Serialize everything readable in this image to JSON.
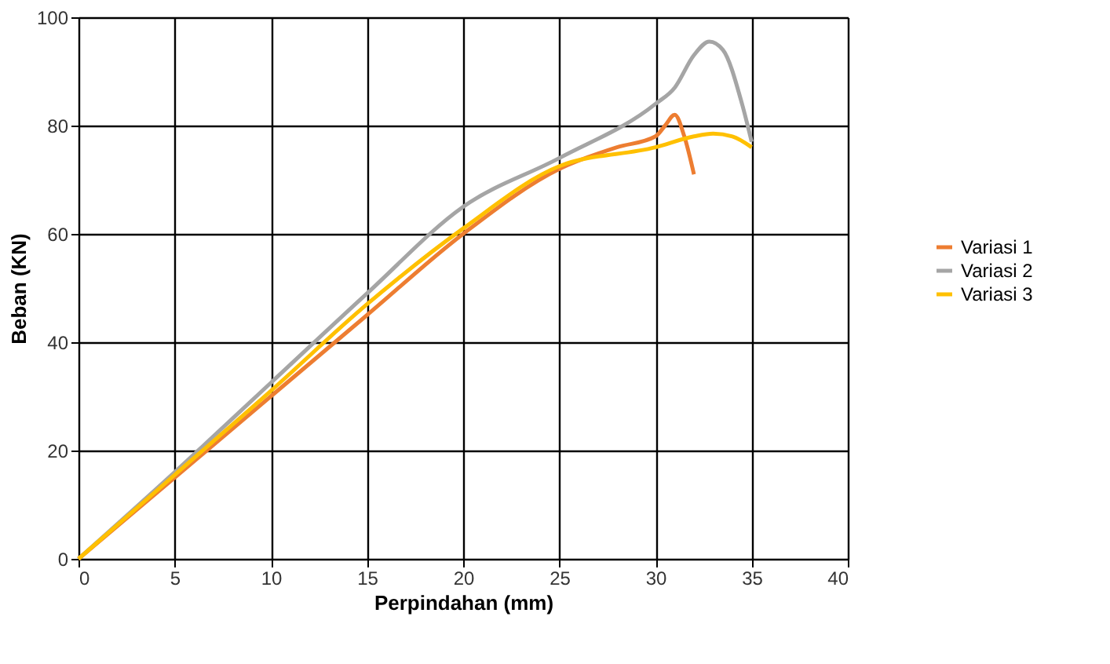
{
  "chart_data": {
    "type": "line",
    "xlabel": "Perpindahan (mm)",
    "ylabel": "Beban (KN)",
    "xlim": [
      0,
      40
    ],
    "xticks": [
      0,
      5,
      10,
      15,
      20,
      25,
      30,
      35,
      40
    ],
    "ylim": [
      0,
      100
    ],
    "yticks": [
      0,
      20,
      40,
      60,
      80,
      100
    ],
    "grid": true,
    "legend": "right",
    "marker": "none",
    "line_style": "solid",
    "series": [
      {
        "name": "Variasi 1",
        "color": "#ed7d31",
        "x": [
          0,
          5,
          10,
          15,
          20,
          25,
          28,
          30,
          30.5,
          31,
          31.5,
          32
        ],
        "values": [
          0,
          15,
          30,
          45,
          60,
          72,
          76,
          78,
          80,
          82,
          78,
          71
        ]
      },
      {
        "name": "Variasi 2",
        "color": "#a5a5a5",
        "x": [
          0,
          5,
          10,
          15,
          20,
          25,
          30,
          31,
          32,
          32.8,
          33.5,
          34.5,
          35
        ],
        "values": [
          0,
          16,
          32.5,
          49,
          65,
          74,
          84,
          87,
          93,
          95.5,
          94,
          84,
          77
        ]
      },
      {
        "name": "Variasi 3",
        "color": "#ffc000",
        "x": [
          0,
          5,
          10,
          15,
          20,
          25,
          30,
          32,
          33,
          34,
          35
        ],
        "values": [
          0,
          15.5,
          31,
          47,
          61,
          72.5,
          76,
          78,
          78.5,
          78,
          76
        ]
      }
    ]
  }
}
